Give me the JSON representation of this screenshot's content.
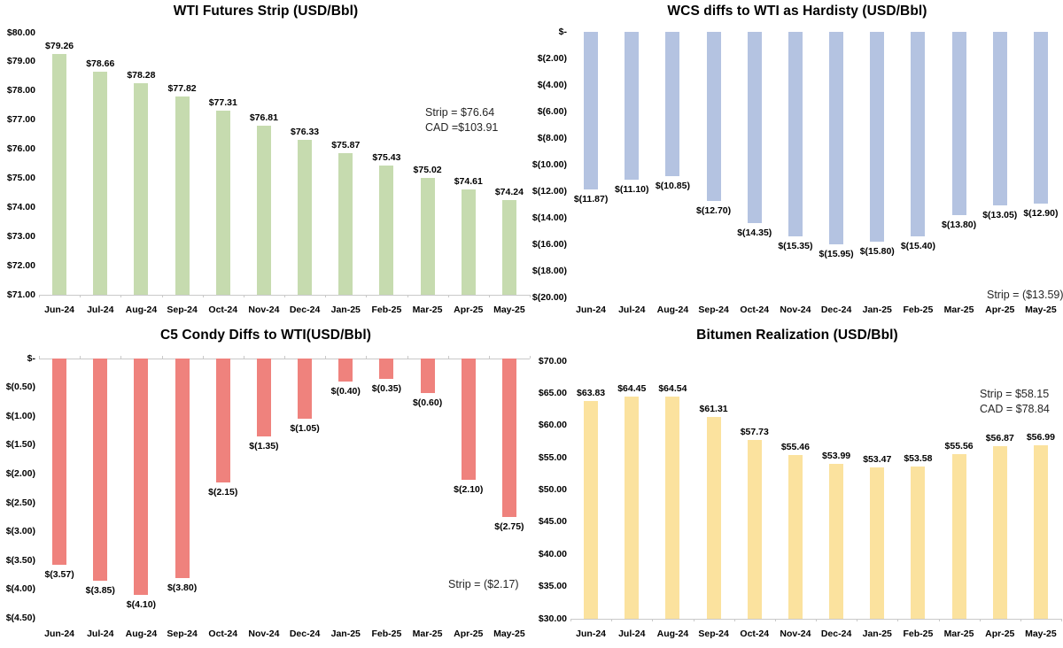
{
  "chart_data": [
    {
      "id": "wti-futures-strip",
      "type": "bar",
      "title": "WTI Futures Strip (USD/Bbl)",
      "bar_color": "#c6dbaf",
      "direction": "up",
      "categories": [
        "Jun-24",
        "Jul-24",
        "Aug-24",
        "Sep-24",
        "Oct-24",
        "Nov-24",
        "Dec-24",
        "Jan-25",
        "Feb-25",
        "Mar-25",
        "Apr-25",
        "May-25"
      ],
      "values": [
        79.26,
        78.66,
        78.28,
        77.82,
        77.31,
        76.81,
        76.33,
        75.87,
        75.43,
        75.02,
        74.61,
        74.24
      ],
      "ylim": [
        71,
        80
      ],
      "ytick_step": 1,
      "annotation": [
        "Strip = $76.64",
        "CAD =$103.91"
      ]
    },
    {
      "id": "wcs-diffs-to-wti",
      "type": "bar",
      "title": "WCS diffs to WTI as Hardisty (USD/Bbl)",
      "bar_color": "#b4c3e1",
      "direction": "down",
      "categories": [
        "Jun-24",
        "Jul-24",
        "Aug-24",
        "Sep-24",
        "Oct-24",
        "Nov-24",
        "Dec-24",
        "Jan-25",
        "Feb-25",
        "Mar-25",
        "Apr-25",
        "May-25"
      ],
      "values": [
        -11.87,
        -11.1,
        -10.85,
        -12.7,
        -14.35,
        -15.35,
        -15.95,
        -15.8,
        -15.4,
        -13.8,
        -13.05,
        -12.9
      ],
      "ylim": [
        -20,
        0
      ],
      "ytick_step": 2,
      "annotation": [
        "Strip = ($13.59)"
      ]
    },
    {
      "id": "c5-condy-diffs-to-wti",
      "type": "bar",
      "title": "C5 Condy Diffs to WTI(USD/Bbl)",
      "bar_color": "#ef827d",
      "direction": "down",
      "categories": [
        "Jun-24",
        "Jul-24",
        "Aug-24",
        "Sep-24",
        "Oct-24",
        "Nov-24",
        "Dec-24",
        "Jan-25",
        "Feb-25",
        "Mar-25",
        "Apr-25",
        "May-25"
      ],
      "values": [
        -3.57,
        -3.85,
        -4.1,
        -3.8,
        -2.15,
        -1.35,
        -1.05,
        -0.4,
        -0.35,
        -0.6,
        -2.1,
        -2.75
      ],
      "ylim": [
        -4.5,
        0
      ],
      "ytick_step": 0.5,
      "annotation": [
        "Strip = ($2.17)"
      ]
    },
    {
      "id": "bitumen-realization",
      "type": "bar",
      "title": "Bitumen Realization (USD/Bbl)",
      "bar_color": "#fbe29e",
      "direction": "up",
      "categories": [
        "Jun-24",
        "Jul-24",
        "Aug-24",
        "Sep-24",
        "Oct-24",
        "Nov-24",
        "Dec-24",
        "Jan-25",
        "Feb-25",
        "Mar-25",
        "Apr-25",
        "May-25"
      ],
      "values": [
        63.83,
        64.45,
        64.54,
        61.31,
        57.73,
        55.46,
        53.99,
        53.47,
        53.58,
        55.56,
        56.87,
        56.99
      ],
      "ylim": [
        30,
        70
      ],
      "ytick_step": 5,
      "annotation": [
        "Strip = $58.15",
        "CAD = $78.84"
      ]
    }
  ]
}
